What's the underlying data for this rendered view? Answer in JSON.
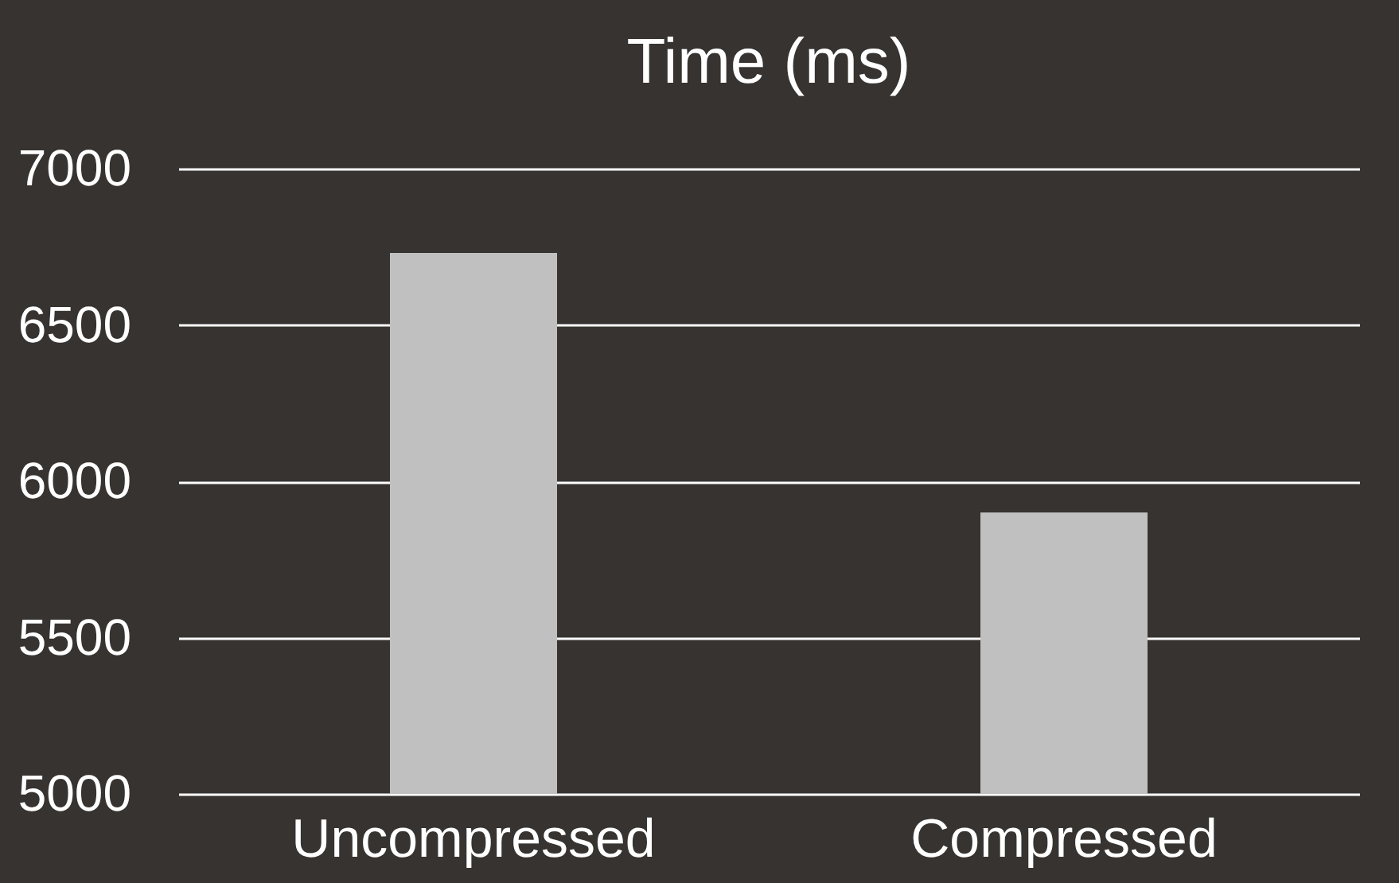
{
  "chart_data": {
    "type": "bar",
    "title": "Time (ms)",
    "categories": [
      "Uncompressed",
      "Compressed"
    ],
    "values": [
      6730,
      5900
    ],
    "color": "#c0c0c0",
    "ylim": [
      5000,
      7000
    ],
    "yticks": [
      5000,
      5500,
      6000,
      6500,
      7000
    ],
    "grid": "y"
  }
}
